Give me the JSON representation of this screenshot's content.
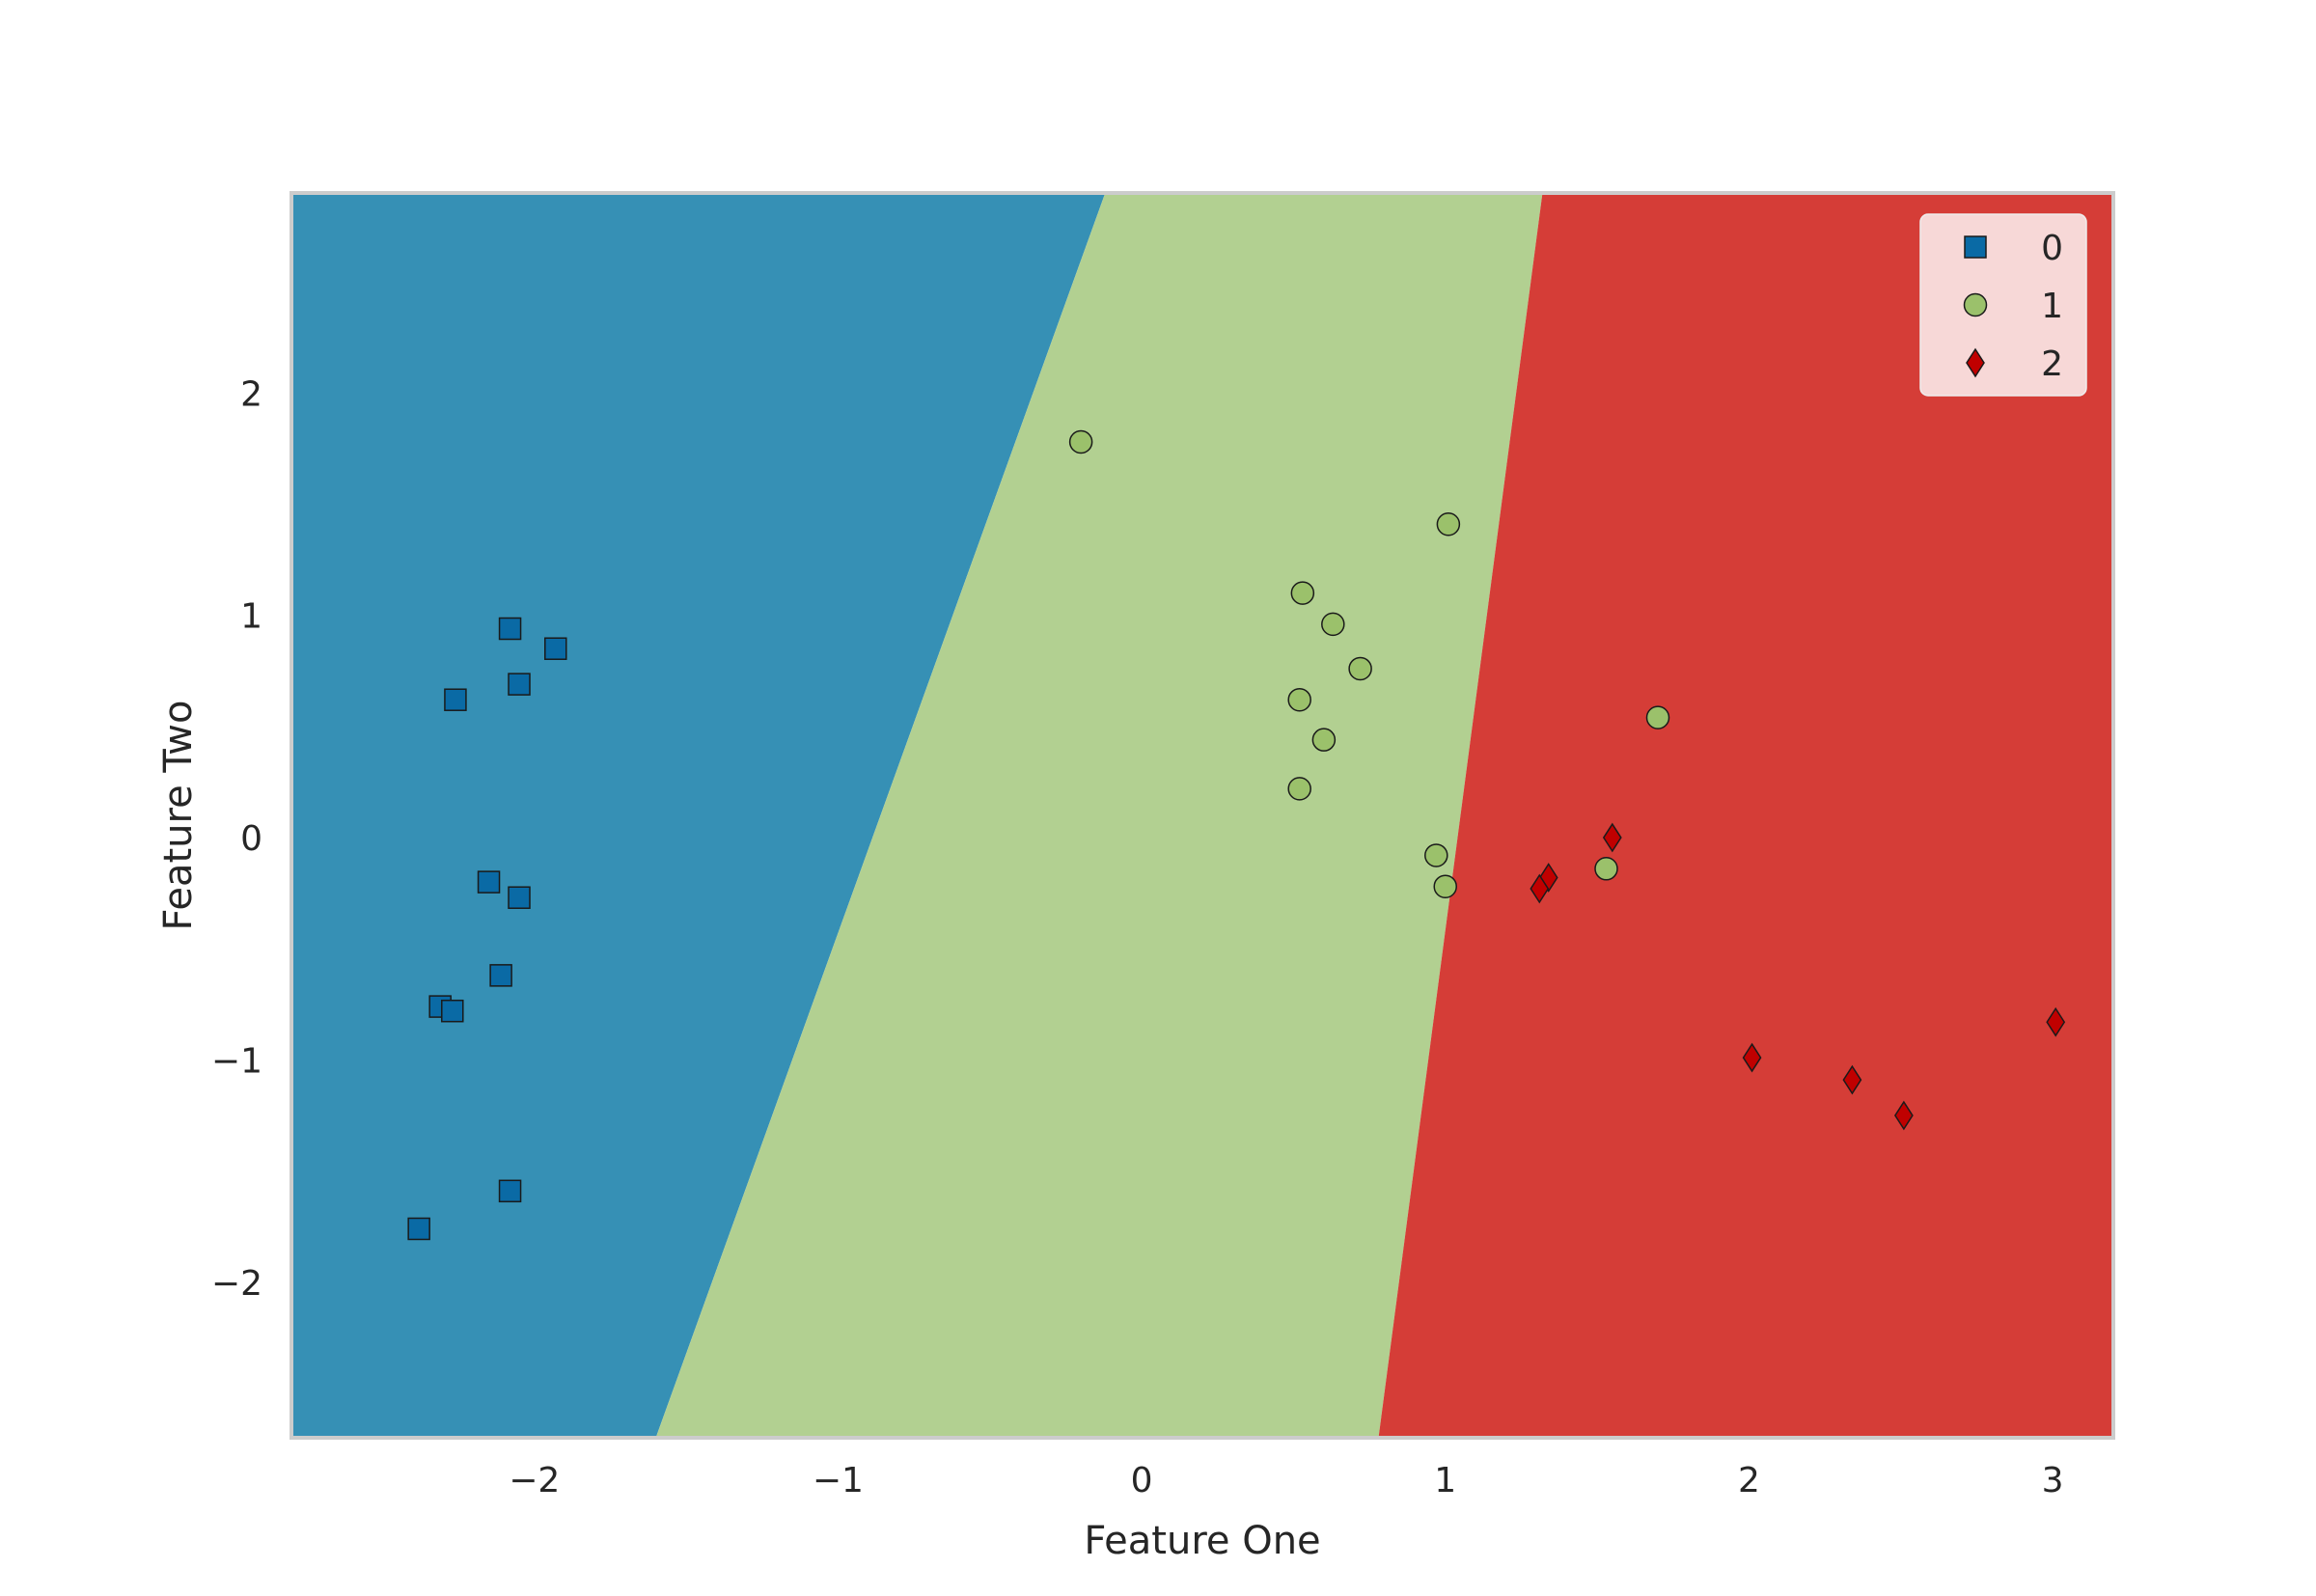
{
  "chart_data": {
    "type": "scatter",
    "title": "",
    "xlabel": "Feature One",
    "ylabel": "Feature Two",
    "xlim": [
      -2.8,
      3.2
    ],
    "ylim": [
      -2.7,
      2.9
    ],
    "xticks": [
      -2,
      -1,
      0,
      1,
      2,
      3
    ],
    "yticks": [
      -2,
      -1,
      0,
      1,
      2
    ],
    "xtick_labels": [
      "−2",
      "−1",
      "0",
      "1",
      "2",
      "3"
    ],
    "ytick_labels": [
      "−2",
      "−1",
      "0",
      "1",
      "2"
    ],
    "grid": false,
    "legend_position": "top-right",
    "decision_regions": [
      {
        "class": "0",
        "color": "#3690b5",
        "left_boundary_x_at_ymin": -2.8,
        "right_boundary_x_at_ymin": -1.6,
        "left_boundary_x_at_ymax": -2.8,
        "right_boundary_x_at_ymax": -0.12
      },
      {
        "class": "1",
        "color": "#b2d091",
        "left_boundary_x_at_ymin": -1.6,
        "right_boundary_x_at_ymin": 0.78,
        "left_boundary_x_at_ymax": -0.12,
        "right_boundary_x_at_ymax": 1.32
      },
      {
        "class": "2",
        "color": "#d53d37",
        "left_boundary_x_at_ymin": 0.78,
        "right_boundary_x_at_ymin": 3.2,
        "left_boundary_x_at_ymax": 1.32,
        "right_boundary_x_at_ymax": 3.2
      }
    ],
    "series": [
      {
        "name": "0",
        "marker": "square",
        "color": "#0a6aa5",
        "points": [
          [
            -2.08,
            0.94
          ],
          [
            -1.93,
            0.85
          ],
          [
            -2.26,
            0.62
          ],
          [
            -2.05,
            0.69
          ],
          [
            -2.15,
            -0.2
          ],
          [
            -2.05,
            -0.27
          ],
          [
            -2.11,
            -0.62
          ],
          [
            -2.31,
            -0.76
          ],
          [
            -2.27,
            -0.78
          ],
          [
            -2.08,
            -1.59
          ],
          [
            -2.38,
            -1.76
          ]
        ]
      },
      {
        "name": "1",
        "marker": "circle",
        "color": "#9bc16b",
        "points": [
          [
            -0.2,
            1.78
          ],
          [
            1.01,
            1.41
          ],
          [
            0.53,
            1.1
          ],
          [
            0.63,
            0.96
          ],
          [
            0.72,
            0.76
          ],
          [
            0.52,
            0.62
          ],
          [
            0.6,
            0.44
          ],
          [
            0.52,
            0.22
          ],
          [
            1.7,
            0.54
          ],
          [
            0.97,
            -0.08
          ],
          [
            1.0,
            -0.22
          ],
          [
            1.53,
            -0.14
          ]
        ]
      },
      {
        "name": "2",
        "marker": "diamond",
        "color": "#c00000",
        "points": [
          [
            1.55,
            0.0
          ],
          [
            1.34,
            -0.18
          ],
          [
            1.31,
            -0.23
          ],
          [
            2.01,
            -0.99
          ],
          [
            2.34,
            -1.09
          ],
          [
            2.51,
            -1.25
          ],
          [
            3.01,
            -0.83
          ]
        ]
      }
    ]
  }
}
